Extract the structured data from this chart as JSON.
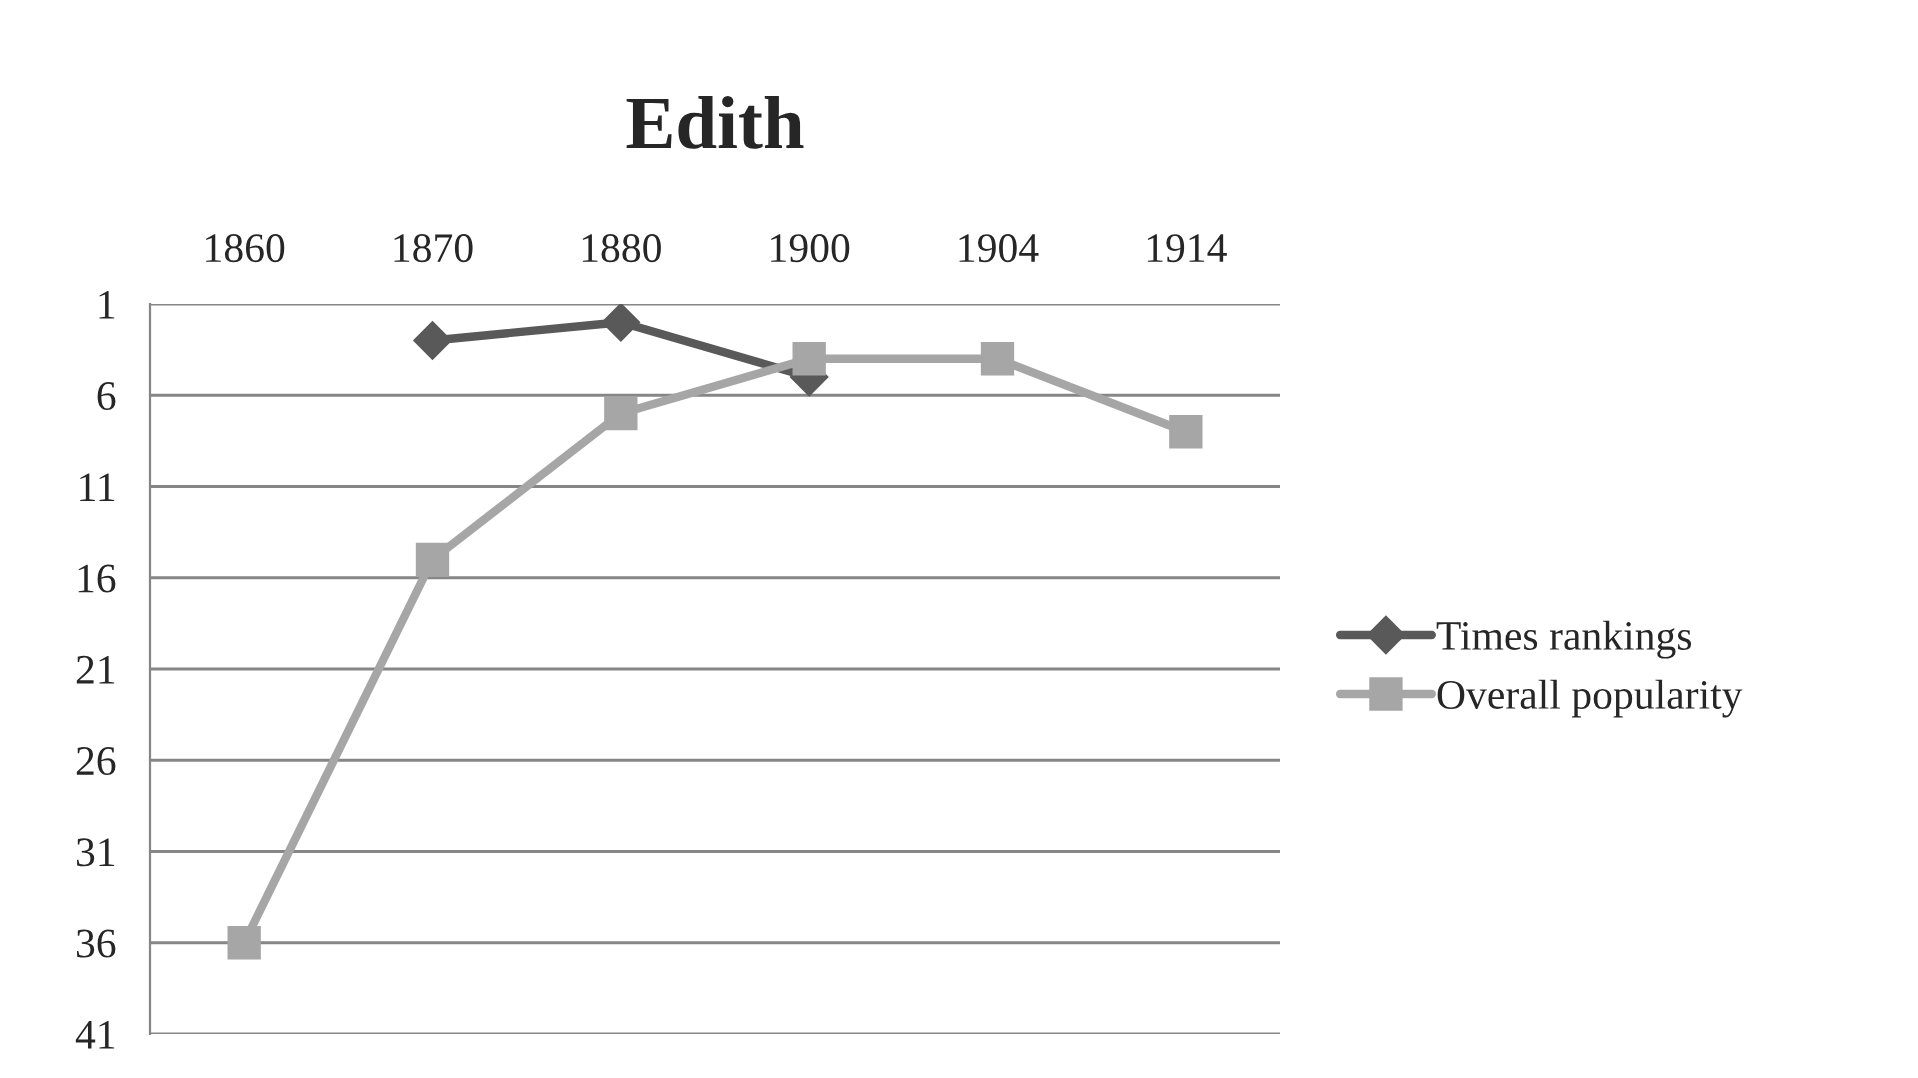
{
  "chart_data": {
    "type": "line",
    "title": "Edith",
    "categories": [
      "1860",
      "1870",
      "1880",
      "1900",
      "1904",
      "1914"
    ],
    "series": [
      {
        "name": "Times rankings",
        "color": "#595959",
        "marker": "diamond",
        "values": [
          null,
          3,
          2,
          5,
          null,
          null
        ]
      },
      {
        "name": "Overall popularity",
        "color": "#a6a6a6",
        "marker": "square",
        "values": [
          36,
          15,
          7,
          4,
          4,
          8
        ]
      }
    ],
    "ylim": [
      41,
      1
    ],
    "yticks": [
      1,
      6,
      11,
      16,
      21,
      26,
      31,
      36,
      41
    ],
    "grid": "y",
    "legend": "right",
    "line_style": "solid"
  }
}
